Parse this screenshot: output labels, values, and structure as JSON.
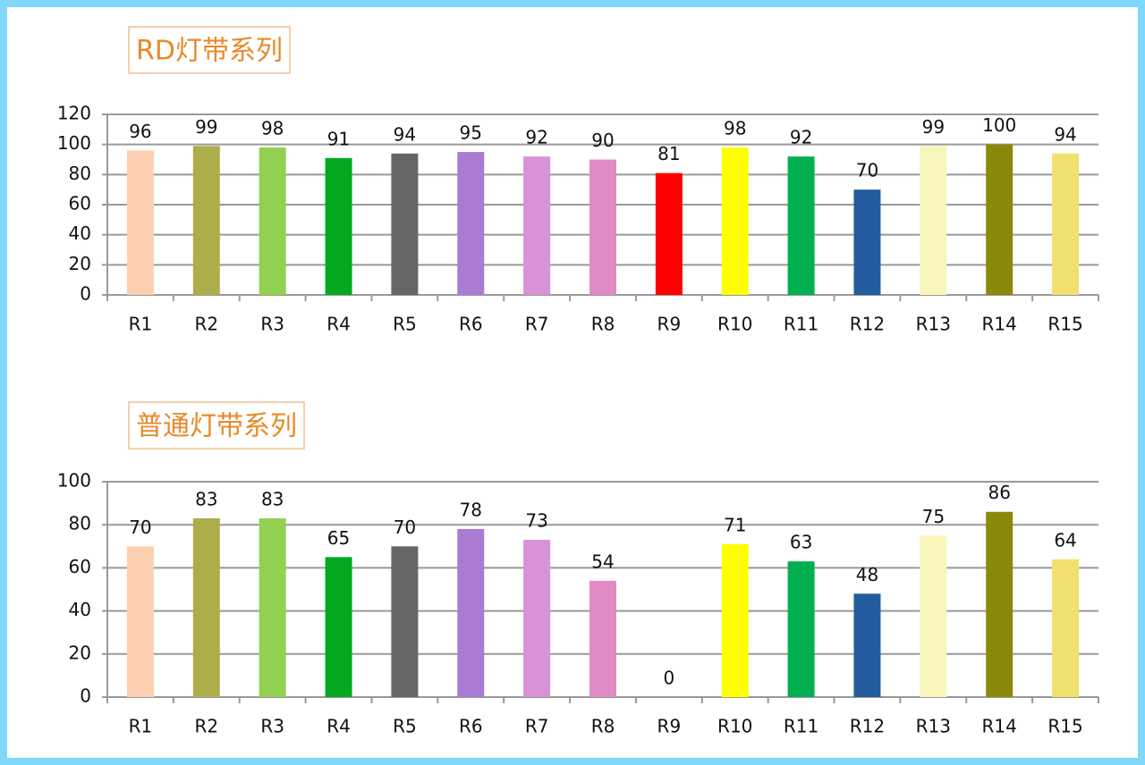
{
  "chart_data": [
    {
      "type": "bar",
      "title": "RD灯带系列",
      "categories": [
        "R1",
        "R2",
        "R3",
        "R4",
        "R5",
        "R6",
        "R7",
        "R8",
        "R9",
        "R10",
        "R11",
        "R12",
        "R13",
        "R14",
        "R15"
      ],
      "values": [
        96,
        99,
        98,
        91,
        94,
        95,
        92,
        90,
        81,
        98,
        92,
        70,
        99,
        100,
        94
      ],
      "colors": [
        "#fdd0b1",
        "#adad4b",
        "#92d050",
        "#05a821",
        "#666666",
        "#a97bd3",
        "#d892d8",
        "#e08bc4",
        "#ff0000",
        "#ffff00",
        "#00b050",
        "#245d9e",
        "#f8f6ba",
        "#8a8a0a",
        "#f2e06e"
      ],
      "ylim": [
        0,
        120
      ],
      "yticks": [
        0,
        20,
        40,
        60,
        80,
        100,
        120
      ],
      "grid": true
    },
    {
      "type": "bar",
      "title": "普通灯带系列",
      "categories": [
        "R1",
        "R2",
        "R3",
        "R4",
        "R5",
        "R6",
        "R7",
        "R8",
        "R9",
        "R10",
        "R11",
        "R12",
        "R13",
        "R14",
        "R15"
      ],
      "values": [
        70,
        83,
        83,
        65,
        70,
        78,
        73,
        54,
        0,
        71,
        63,
        48,
        75,
        86,
        64
      ],
      "colors": [
        "#fdd0b1",
        "#adad4b",
        "#92d050",
        "#05a821",
        "#666666",
        "#a97bd3",
        "#d892d8",
        "#e08bc4",
        "#ff0000",
        "#ffff00",
        "#00b050",
        "#245d9e",
        "#f8f6ba",
        "#8a8a0a",
        "#f2e06e"
      ],
      "ylim": [
        0,
        100
      ],
      "yticks": [
        0,
        20,
        40,
        60,
        80,
        100
      ],
      "grid": true
    }
  ]
}
